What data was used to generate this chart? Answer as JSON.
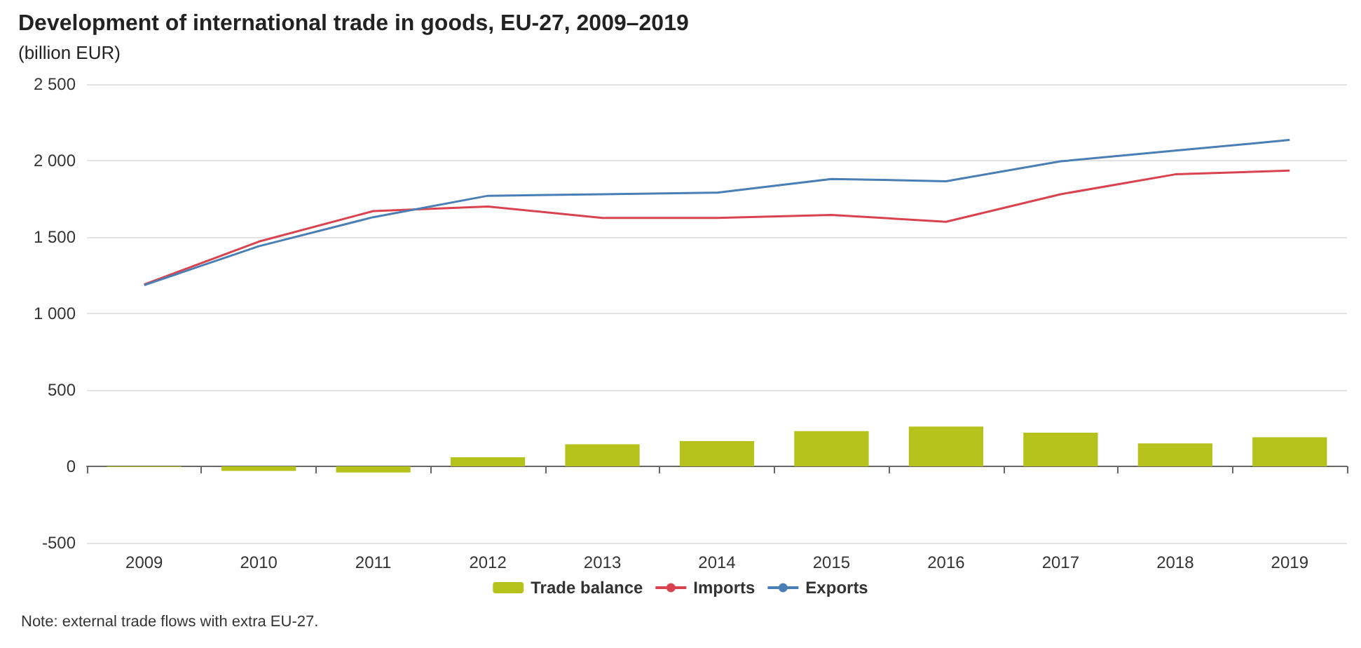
{
  "chart_data": {
    "type": "bar",
    "title": "Development of international trade in goods, EU-27, 2009–2019",
    "subtitle": "(billion EUR)",
    "categories": [
      "2009",
      "2010",
      "2011",
      "2012",
      "2013",
      "2014",
      "2015",
      "2016",
      "2017",
      "2018",
      "2019"
    ],
    "series": [
      {
        "name": "Trade balance",
        "color": "#b5c21c",
        "values": [
          -5,
          -30,
          -40,
          60,
          145,
          165,
          230,
          260,
          220,
          150,
          190
        ]
      },
      {
        "name": "Imports",
        "type": "line",
        "color": "#d9434f",
        "values": [
          1190,
          1470,
          1670,
          1700,
          1625,
          1625,
          1645,
          1600,
          1780,
          1910,
          1935
        ]
      },
      {
        "name": "Exports",
        "type": "line",
        "color": "#4a7fb5",
        "values": [
          1185,
          1440,
          1630,
          1770,
          1780,
          1790,
          1880,
          1865,
          1995,
          2065,
          2135
        ]
      }
    ],
    "ylim": [
      -500,
      2500
    ],
    "yticks": [
      -500,
      0,
      500,
      {
        "value": 1000,
        "label": "1 000"
      },
      {
        "value": 1500,
        "label": "1 500"
      },
      {
        "value": 2000,
        "label": "2 000"
      },
      {
        "value": 2500,
        "label": "2 500"
      }
    ],
    "grid": "y",
    "legend": "bottom",
    "marker": "none",
    "annotations": [
      "Note: external trade flows with extra EU-27."
    ]
  }
}
